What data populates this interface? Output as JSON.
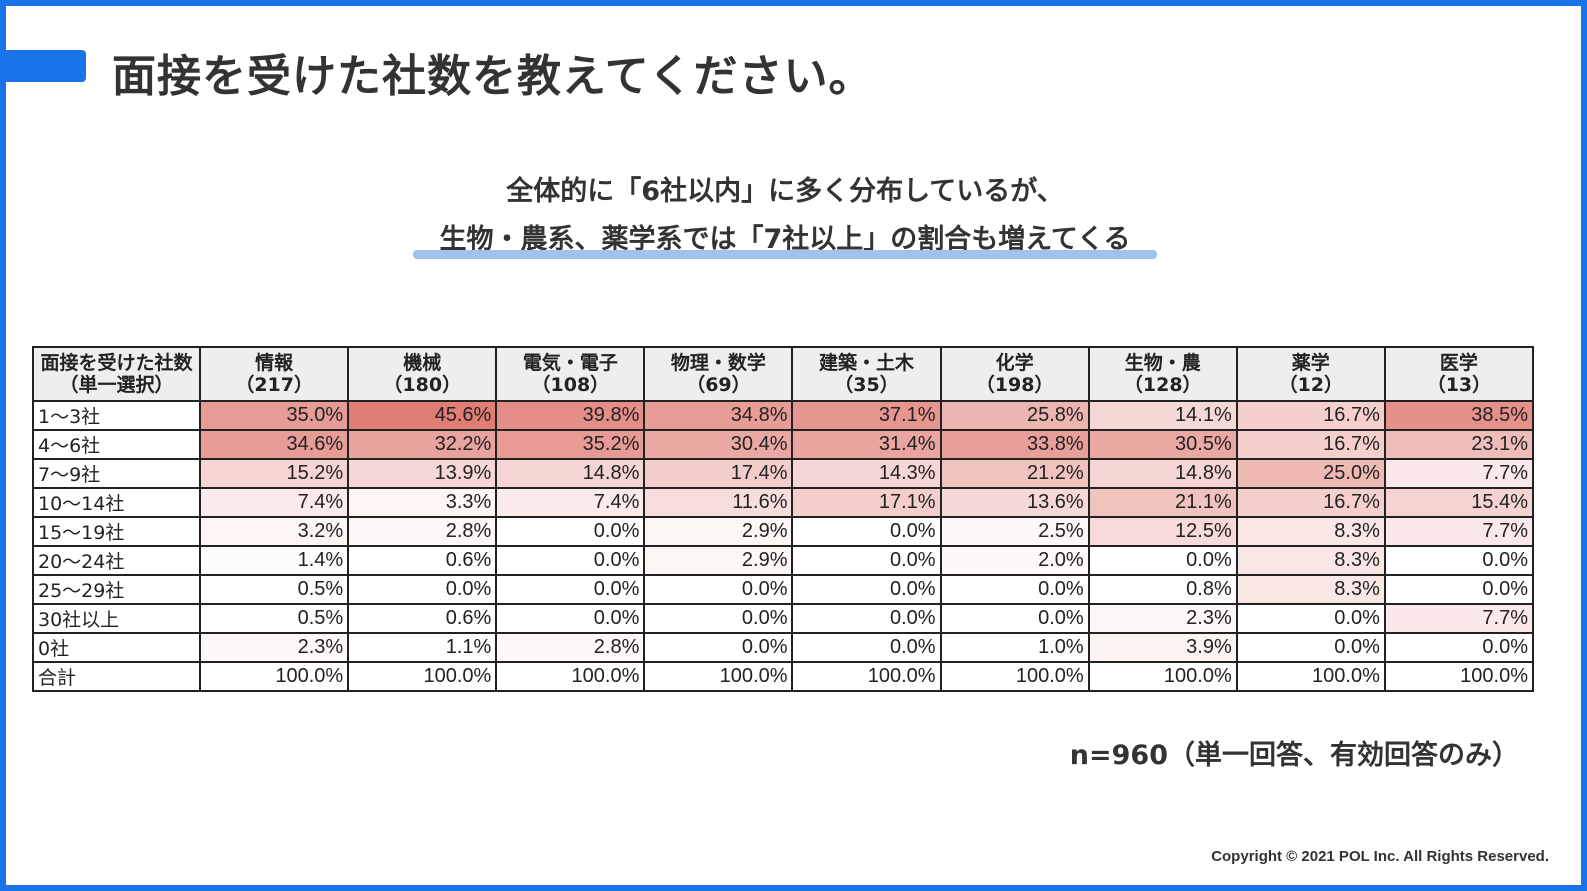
{
  "header": {
    "title": "面接を受けた社数を教えてください。"
  },
  "subtitle": {
    "line1": "全体的に「6社以内」に多く分布しているが、",
    "line2": "生物・農系、薬学系では「7社以上」の割合も増えてくる"
  },
  "colors": {
    "brand_blue": "#1a73e8",
    "underline": "#9fc2ee",
    "heat_max": "#e07d75",
    "heat_min": "#ffffff",
    "header_bg": "#eeeeee"
  },
  "table": {
    "headers": [
      {
        "line1": "面接を受けた社数",
        "line2": "（単一選択）"
      },
      {
        "line1": "情報",
        "line2": "（217）"
      },
      {
        "line1": "機械",
        "line2": "（180）"
      },
      {
        "line1": "電気・電子",
        "line2": "（108）"
      },
      {
        "line1": "物理・数学",
        "line2": "（69）"
      },
      {
        "line1": "建築・土木",
        "line2": "（35）"
      },
      {
        "line1": "化学",
        "line2": "（198）"
      },
      {
        "line1": "生物・農",
        "line2": "（128）"
      },
      {
        "line1": "薬学",
        "line2": "（12）"
      },
      {
        "line1": "医学",
        "line2": "（13）"
      }
    ],
    "rows": [
      {
        "label": "1～3社",
        "cells": [
          "35.0%",
          "45.6%",
          "39.8%",
          "34.8%",
          "37.1%",
          "25.8%",
          "14.1%",
          "16.7%",
          "38.5%"
        ],
        "values": [
          35.0,
          45.6,
          39.8,
          34.8,
          37.1,
          25.8,
          14.1,
          16.7,
          38.5
        ]
      },
      {
        "label": "4～6社",
        "cells": [
          "34.6%",
          "32.2%",
          "35.2%",
          "30.4%",
          "31.4%",
          "33.8%",
          "30.5%",
          "16.7%",
          "23.1%"
        ],
        "values": [
          34.6,
          32.2,
          35.2,
          30.4,
          31.4,
          33.8,
          30.5,
          16.7,
          23.1
        ]
      },
      {
        "label": "7～9社",
        "cells": [
          "15.2%",
          "13.9%",
          "14.8%",
          "17.4%",
          "14.3%",
          "21.2%",
          "14.8%",
          "25.0%",
          "7.7%"
        ],
        "values": [
          15.2,
          13.9,
          14.8,
          17.4,
          14.3,
          21.2,
          14.8,
          25.0,
          7.7
        ]
      },
      {
        "label": "10～14社",
        "cells": [
          "7.4%",
          "3.3%",
          "7.4%",
          "11.6%",
          "17.1%",
          "13.6%",
          "21.1%",
          "16.7%",
          "15.4%"
        ],
        "values": [
          7.4,
          3.3,
          7.4,
          11.6,
          17.1,
          13.6,
          21.1,
          16.7,
          15.4
        ]
      },
      {
        "label": "15～19社",
        "cells": [
          "3.2%",
          "2.8%",
          "0.0%",
          "2.9%",
          "0.0%",
          "2.5%",
          "12.5%",
          "8.3%",
          "7.7%"
        ],
        "values": [
          3.2,
          2.8,
          0.0,
          2.9,
          0.0,
          2.5,
          12.5,
          8.3,
          7.7
        ]
      },
      {
        "label": "20～24社",
        "cells": [
          "1.4%",
          "0.6%",
          "0.0%",
          "2.9%",
          "0.0%",
          "2.0%",
          "0.0%",
          "8.3%",
          "0.0%"
        ],
        "values": [
          1.4,
          0.6,
          0.0,
          2.9,
          0.0,
          2.0,
          0.0,
          8.3,
          0.0
        ]
      },
      {
        "label": "25～29社",
        "cells": [
          "0.5%",
          "0.0%",
          "0.0%",
          "0.0%",
          "0.0%",
          "0.0%",
          "0.8%",
          "8.3%",
          "0.0%"
        ],
        "values": [
          0.5,
          0.0,
          0.0,
          0.0,
          0.0,
          0.0,
          0.8,
          8.3,
          0.0
        ]
      },
      {
        "label": "30社以上",
        "cells": [
          "0.5%",
          "0.6%",
          "0.0%",
          "0.0%",
          "0.0%",
          "0.0%",
          "2.3%",
          "0.0%",
          "7.7%"
        ],
        "values": [
          0.5,
          0.6,
          0.0,
          0.0,
          0.0,
          0.0,
          2.3,
          0.0,
          7.7
        ]
      },
      {
        "label": "0社",
        "cells": [
          "2.3%",
          "1.1%",
          "2.8%",
          "0.0%",
          "0.0%",
          "1.0%",
          "3.9%",
          "0.0%",
          "0.0%"
        ],
        "values": [
          2.3,
          1.1,
          2.8,
          0.0,
          0.0,
          1.0,
          3.9,
          0.0,
          0.0
        ]
      },
      {
        "label": "合計",
        "cells": [
          "100.0%",
          "100.0%",
          "100.0%",
          "100.0%",
          "100.0%",
          "100.0%",
          "100.0%",
          "100.0%",
          "100.0%"
        ],
        "values": null
      }
    ]
  },
  "footer": {
    "note": "n=960（単一回答、有効回答のみ）",
    "copyright": "Copyright © 2021 POL Inc. All Rights Reserved."
  }
}
